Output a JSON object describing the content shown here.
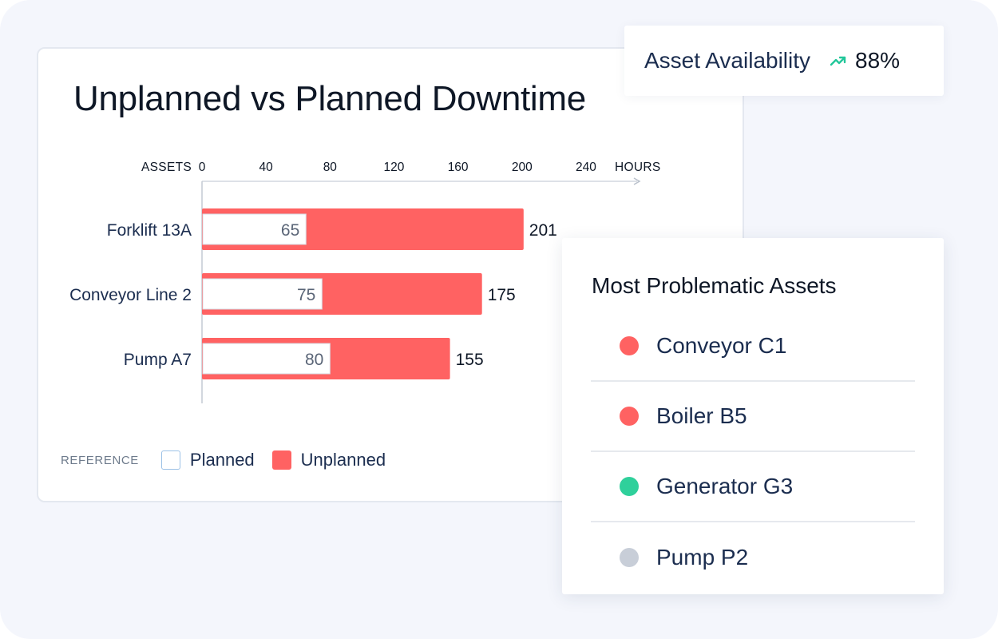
{
  "chart_data": {
    "type": "bar",
    "orientation": "horizontal",
    "stacked": true,
    "title": "Unplanned vs Planned Downtime",
    "ylabel": "ASSETS",
    "xlabel": "HOURS",
    "xlim": [
      0,
      280
    ],
    "xticks": [
      0,
      40,
      80,
      120,
      160,
      200,
      240
    ],
    "categories": [
      "Forklift 13A",
      "Conveyor Line 2",
      "Pump A7"
    ],
    "series": [
      {
        "name": "Planned",
        "values": [
          65,
          75,
          80
        ],
        "color": "#ffffff",
        "border": "#9cc1e6"
      },
      {
        "name": "Unplanned",
        "values": [
          136,
          100,
          75
        ],
        "color": "#ff6262"
      }
    ],
    "total_labels": [
      201,
      175,
      155
    ],
    "legend": {
      "title": "REFERENCE",
      "placement": "bottom-left"
    },
    "grid": false
  },
  "availability": {
    "label": "Asset Availability",
    "value": "88%",
    "trend_icon": "trending-up-icon",
    "trend_color": "#22c79a"
  },
  "problem_assets": {
    "title": "Most Problematic Assets",
    "items": [
      {
        "name": "Conveyor C1",
        "color": "#ff6262"
      },
      {
        "name": "Boiler B5",
        "color": "#ff6262"
      },
      {
        "name": "Generator G3",
        "color": "#2fd09b"
      },
      {
        "name": "Pump P2",
        "color": "#c8ced8"
      }
    ]
  }
}
